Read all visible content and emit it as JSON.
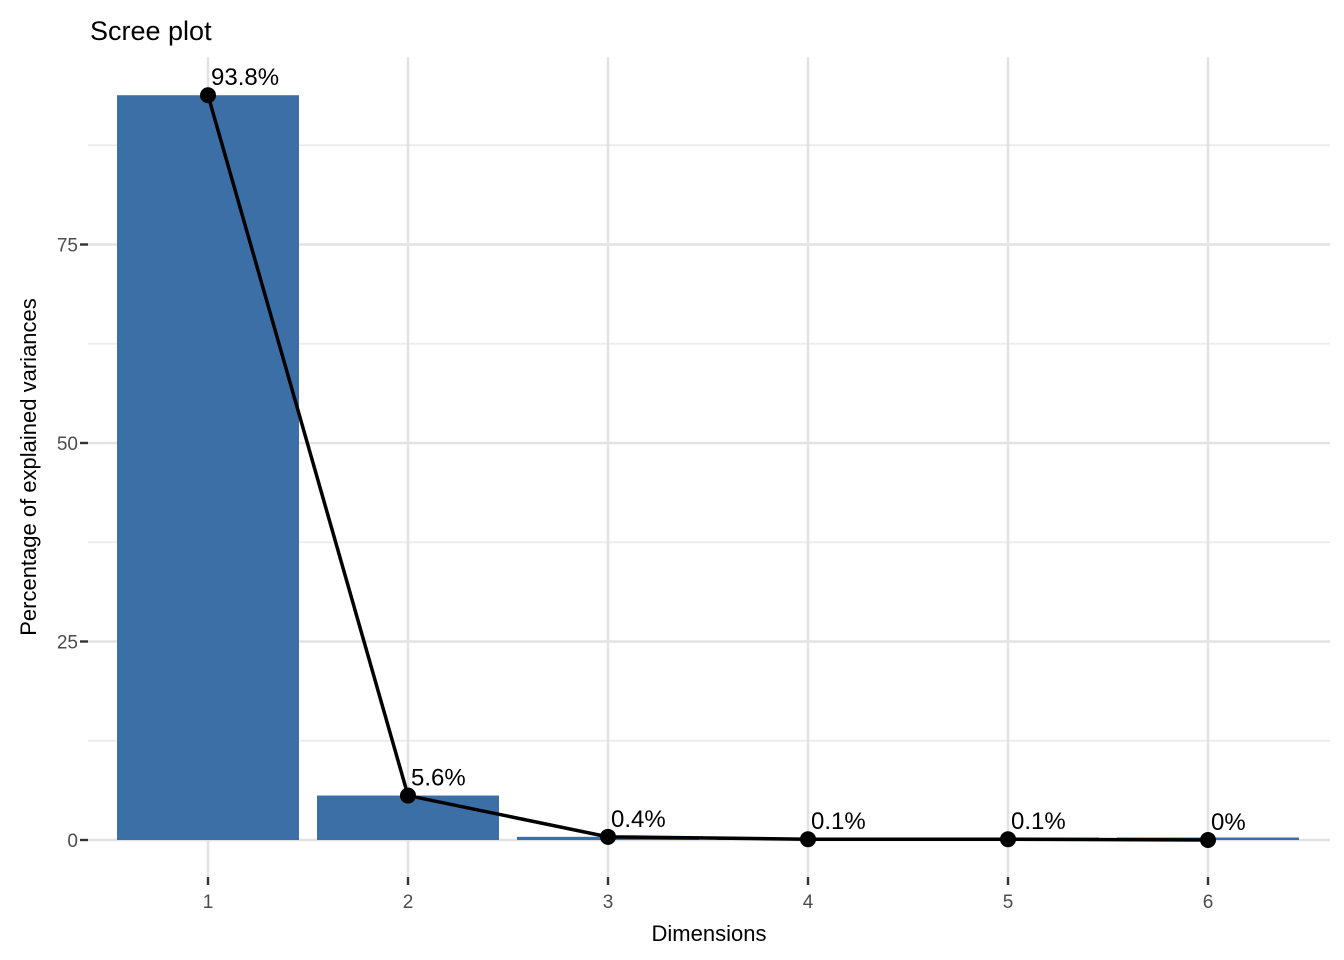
{
  "chart_data": {
    "type": "bar",
    "title": "Scree plot",
    "xlabel": "Dimensions",
    "ylabel": "Percentage of explained variances",
    "categories": [
      "1",
      "2",
      "3",
      "4",
      "5",
      "6"
    ],
    "values": [
      93.8,
      5.6,
      0.4,
      0.1,
      0.1,
      0
    ],
    "point_labels": [
      "93.8%",
      "5.6%",
      "0.4%",
      "0.1%",
      "0.1%",
      "0%"
    ],
    "series_overlay": "line-with-points",
    "y_ticks": [
      0,
      25,
      50,
      75
    ],
    "ylim": [
      -4.7,
      98.6
    ],
    "grid": "on",
    "legend": "none",
    "colors": {
      "bar_fill": "#3c6fa6",
      "line": "#000000",
      "point": "#000000",
      "grid_major": "#e2e2e2",
      "grid_minor": "#ebebeb",
      "tick_mark": "#333333",
      "tick_text": "#4d4d4d",
      "background": "#ffffff"
    }
  }
}
